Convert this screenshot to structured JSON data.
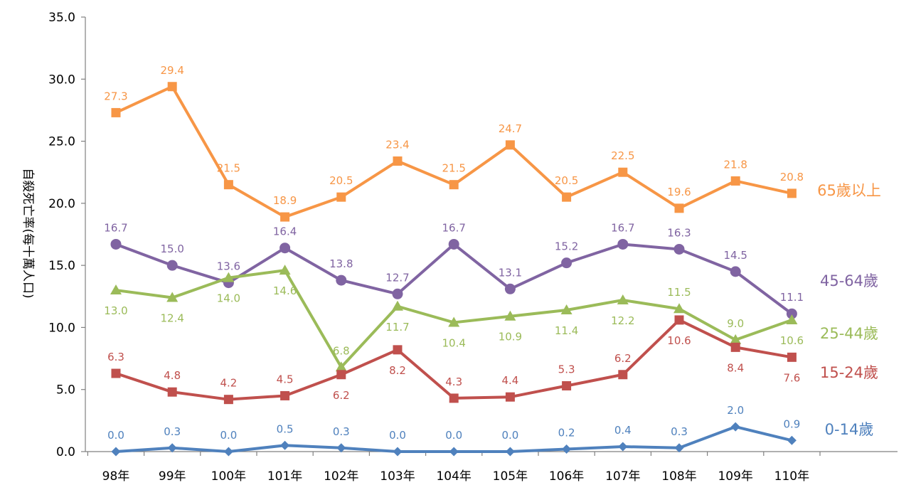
{
  "chart_data": {
    "type": "line",
    "title": "",
    "xlabel": "",
    "ylabel": "自殺死亡率(每十萬人口)",
    "ylim": [
      0,
      35
    ],
    "yticks": [
      "0.0",
      "5.0",
      "10.0",
      "15.0",
      "20.0",
      "25.0",
      "30.0",
      "35.0"
    ],
    "grid": false,
    "legend": "none (series labels at right end of lines)",
    "categories": [
      "98年",
      "99年",
      "100年",
      "101年",
      "102年",
      "103年",
      "104年",
      "105年",
      "106年",
      "107年",
      "108年",
      "109年",
      "110年"
    ],
    "series": [
      {
        "name": "65歲以上",
        "color": "#F79646",
        "marker": "square",
        "values": [
          27.3,
          29.4,
          21.5,
          18.9,
          20.5,
          23.4,
          21.5,
          24.7,
          20.5,
          22.5,
          19.6,
          21.8,
          20.8
        ],
        "labels": [
          "27.3",
          "29.4",
          "21.5",
          "18.9",
          "20.5",
          "23.4",
          "21.5",
          "24.7",
          "20.5",
          "22.5",
          "19.6",
          "21.8",
          "20.8"
        ]
      },
      {
        "name": "45-64歲",
        "color": "#8064A2",
        "marker": "circle",
        "values": [
          16.7,
          15.0,
          13.6,
          16.4,
          13.8,
          12.7,
          16.7,
          13.1,
          15.2,
          16.7,
          16.3,
          14.5,
          11.1
        ],
        "labels": [
          "16.7",
          "15.0",
          "13.6",
          "16.4",
          "13.8",
          "12.7",
          "16.7",
          "13.1",
          "15.2",
          "16.7",
          "16.3",
          "14.5",
          "11.1"
        ]
      },
      {
        "name": "25-44歲",
        "color": "#9BBB59",
        "marker": "triangle",
        "values": [
          13.0,
          12.4,
          14.0,
          14.6,
          6.8,
          11.7,
          10.4,
          10.9,
          11.4,
          12.2,
          11.5,
          9.0,
          10.6
        ],
        "labels": [
          "13.0",
          "12.4",
          "14.0",
          "14.6",
          "6.8",
          "11.7",
          "10.4",
          "10.9",
          "11.4",
          "12.2",
          "11.5",
          "9.0",
          "10.6"
        ]
      },
      {
        "name": "15-24歲",
        "color": "#C0504D",
        "marker": "square",
        "values": [
          6.3,
          4.8,
          4.2,
          4.5,
          6.2,
          8.2,
          4.3,
          4.4,
          5.3,
          6.2,
          10.6,
          8.4,
          7.6
        ],
        "labels": [
          "6.3",
          "4.8",
          "4.2",
          "4.5",
          "6.2",
          "8.2",
          "4.3",
          "4.4",
          "5.3",
          "6.2",
          "10.6",
          "8.4",
          "7.6"
        ]
      },
      {
        "name": "0-14歲",
        "color": "#4F81BD",
        "marker": "diamond",
        "values": [
          0.0,
          0.3,
          0.0,
          0.5,
          0.3,
          0.0,
          0.0,
          0.0,
          0.2,
          0.4,
          0.3,
          2.0,
          0.9
        ],
        "labels": [
          "0.0",
          "0.3",
          "0.0",
          "0.5",
          "0.3",
          "0.0",
          "0.0",
          "0.0",
          "0.2",
          "0.4",
          "0.3",
          "2.0",
          "0.9"
        ]
      }
    ]
  }
}
